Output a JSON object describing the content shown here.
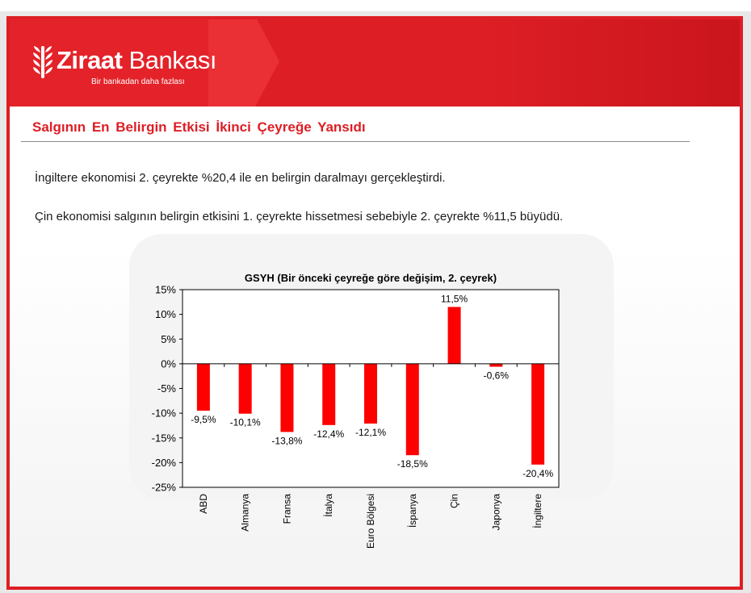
{
  "brand": {
    "name_bold": "Ziraat",
    "name_light": " Bankası",
    "slogan": "Bir bankadan daha fazlası",
    "accent": "#dd1e25"
  },
  "slide": {
    "title": "Salgının En Belirgin Etkisi İkinci Çeyreğe Yansıdı",
    "paragraphs": [
      "İngiltere ekonomisi 2. çeyrekte %20,4 ile en belirgin daralmayı gerçekleştirdi.",
      "Çin ekonomisi salgının belirgin etkisini 1. çeyrekte hissetmesi sebebiyle 2. çeyrekte %11,5 büyüdü."
    ]
  },
  "chart_data": {
    "type": "bar",
    "title": "GSYH (Bir önceki çeyreğe göre değişim, 2. çeyrek)",
    "categories": [
      "ABD",
      "Almanya",
      "Fransa",
      "İtalya",
      "Euro Bölgesi",
      "İspanya",
      "Çin",
      "Japonya",
      "İngiltere"
    ],
    "values": [
      -9.5,
      -10.1,
      -13.8,
      -12.4,
      -12.1,
      -18.5,
      11.5,
      -0.6,
      -20.4
    ],
    "value_labels": [
      "-9,5%",
      "-10,1%",
      "-13,8%",
      "-12,4%",
      "-12,1%",
      "-18,5%",
      "11,5%",
      "-0,6%",
      "-20,4%"
    ],
    "ylim": [
      -25,
      15
    ],
    "yticks": [
      15,
      10,
      5,
      0,
      -5,
      -10,
      -15,
      -20,
      -25
    ],
    "ytick_labels": [
      "15%",
      "10%",
      "5%",
      "0%",
      "-5%",
      "-10%",
      "-15%",
      "-20%",
      "-25%"
    ],
    "bar_color": "#ff0000",
    "grid": false,
    "legend": "none",
    "xlabel": "",
    "ylabel": ""
  }
}
